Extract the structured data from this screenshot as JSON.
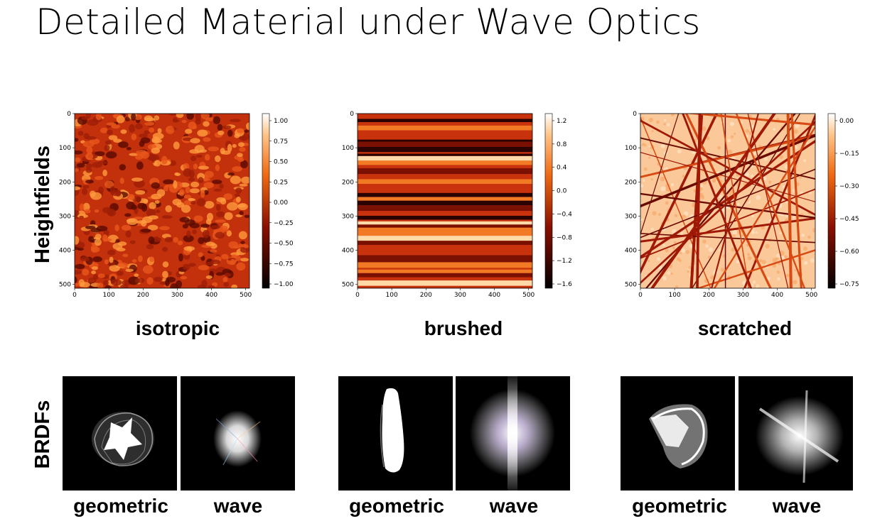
{
  "title": "Detailed Material under Wave Optics",
  "row_labels": {
    "heightfields": "Heightfields",
    "brdfs": "BRDFs"
  },
  "panels": [
    {
      "caption": "isotropic",
      "x_ticks": [
        "0",
        "100",
        "200",
        "300",
        "400",
        "500"
      ],
      "y_ticks": [
        "0",
        "100",
        "200",
        "300",
        "400",
        "500"
      ],
      "colorbar_ticks": [
        "1.00",
        "0.75",
        "0.50",
        "0.25",
        "0.00",
        "−0.25",
        "−0.50",
        "−0.75",
        "−1.00"
      ]
    },
    {
      "caption": "brushed",
      "x_ticks": [
        "0",
        "100",
        "200",
        "300",
        "400",
        "500"
      ],
      "y_ticks": [
        "0",
        "100",
        "200",
        "300",
        "400",
        "500"
      ],
      "colorbar_ticks": [
        "1.2",
        "0.8",
        "0.4",
        "0.0",
        "−0.4",
        "−0.8",
        "−1.2",
        "−1.6"
      ]
    },
    {
      "caption": "scratched",
      "x_ticks": [
        "0",
        "100",
        "200",
        "300",
        "400",
        "500"
      ],
      "y_ticks": [
        "0",
        "100",
        "200",
        "300",
        "400",
        "500"
      ],
      "colorbar_ticks": [
        "0.00",
        "−0.15",
        "−0.30",
        "−0.45",
        "−0.60",
        "−0.75"
      ]
    }
  ],
  "brdf_labels": {
    "geometric": "geometric",
    "wave": "wave"
  },
  "colors": {
    "heat_dark": "#1a0000",
    "heat_mid": "#c0300a",
    "heat_light": "#ffe8d0"
  }
}
